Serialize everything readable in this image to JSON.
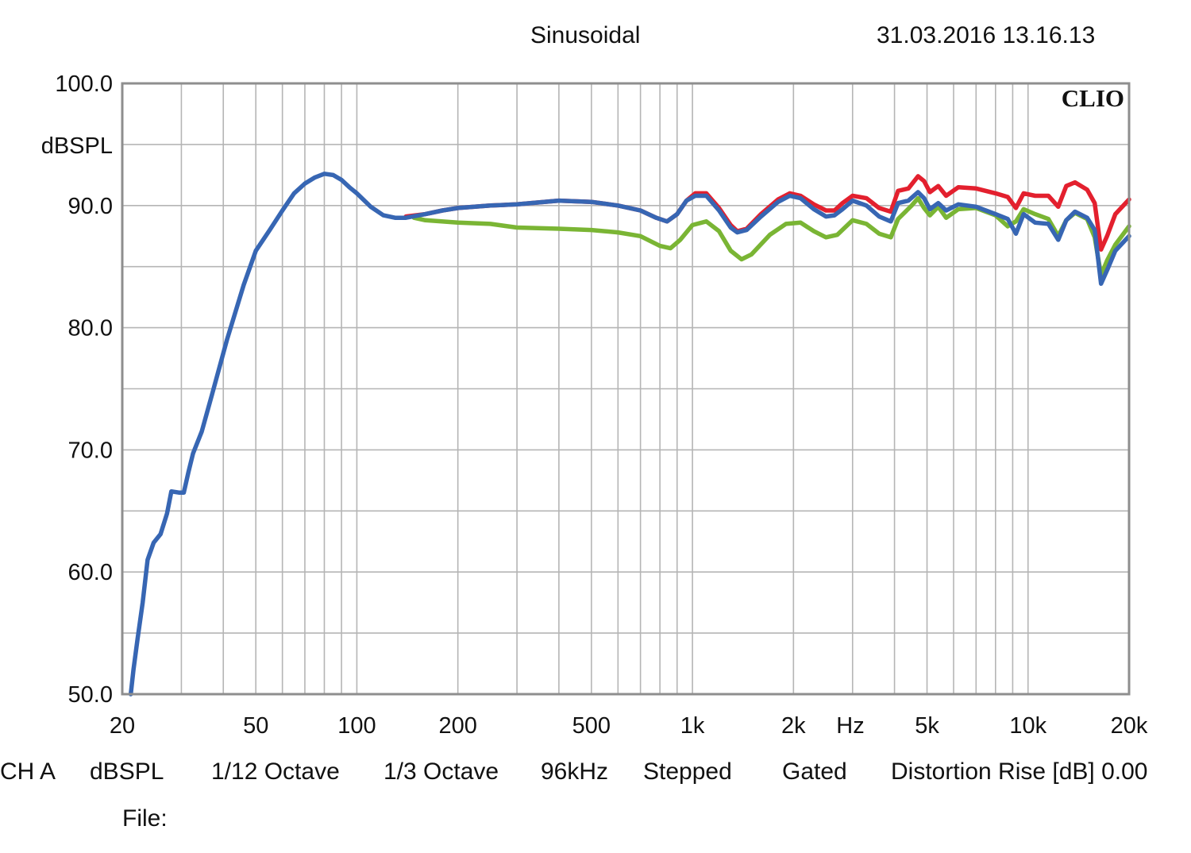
{
  "header": {
    "title": "Sinusoidal",
    "datetime": "31.03.2016 13.16.13"
  },
  "brand": "CLIO",
  "footer": {
    "items": [
      "CH A",
      "dBSPL",
      "1/12 Octave",
      "1/3 Octave",
      "96kHz",
      "Stepped",
      "Gated",
      "Distortion Rise [dB] 0.00"
    ],
    "file_label": "File:"
  },
  "chart_data": {
    "type": "line",
    "xscale": "log",
    "xlim": [
      20,
      20000
    ],
    "ylim": [
      50,
      100
    ],
    "grid": true,
    "ylabel": "dBSPL",
    "xunit_label": "Hz",
    "yticks": [
      "100.0",
      "90.0",
      "80.0",
      "70.0",
      "60.0",
      "50.0"
    ],
    "ytick_values": [
      100,
      90,
      80,
      70,
      60,
      50
    ],
    "xticks": [
      "20",
      "50",
      "100",
      "200",
      "500",
      "1k",
      "2k",
      "5k",
      "10k",
      "20k"
    ],
    "xtick_values": [
      20,
      50,
      100,
      200,
      500,
      1000,
      2000,
      5000,
      10000,
      20000
    ],
    "series": [
      {
        "color": "#7ab534",
        "points": [
          [
            148,
            89.0
          ],
          [
            160,
            88.8
          ],
          [
            200,
            88.6
          ],
          [
            250,
            88.5
          ],
          [
            300,
            88.2
          ],
          [
            400,
            88.1
          ],
          [
            500,
            88.0
          ],
          [
            600,
            87.8
          ],
          [
            700,
            87.5
          ],
          [
            800,
            86.7
          ],
          [
            860,
            86.5
          ],
          [
            920,
            87.2
          ],
          [
            1000,
            88.4
          ],
          [
            1100,
            88.7
          ],
          [
            1200,
            87.9
          ],
          [
            1300,
            86.3
          ],
          [
            1400,
            85.6
          ],
          [
            1500,
            86.0
          ],
          [
            1700,
            87.6
          ],
          [
            1900,
            88.5
          ],
          [
            2100,
            88.6
          ],
          [
            2300,
            87.9
          ],
          [
            2500,
            87.4
          ],
          [
            2700,
            87.6
          ],
          [
            3000,
            88.8
          ],
          [
            3300,
            88.5
          ],
          [
            3600,
            87.7
          ],
          [
            3900,
            87.4
          ],
          [
            4100,
            88.9
          ],
          [
            4500,
            90.0
          ],
          [
            4700,
            90.6
          ],
          [
            4900,
            89.8
          ],
          [
            5100,
            89.2
          ],
          [
            5400,
            89.9
          ],
          [
            5700,
            89.0
          ],
          [
            6200,
            89.7
          ],
          [
            7000,
            89.8
          ],
          [
            8000,
            89.2
          ],
          [
            8700,
            88.3
          ],
          [
            9200,
            88.7
          ],
          [
            9700,
            89.7
          ],
          [
            10500,
            89.3
          ],
          [
            11500,
            88.9
          ],
          [
            12300,
            87.5
          ],
          [
            13000,
            88.8
          ],
          [
            13800,
            89.4
          ],
          [
            15000,
            88.9
          ],
          [
            15800,
            87.4
          ],
          [
            16500,
            84.3
          ],
          [
            17200,
            85.5
          ],
          [
            18200,
            86.8
          ],
          [
            20000,
            88.3
          ]
        ]
      },
      {
        "color": "#e3202e",
        "points": [
          [
            140,
            89.1
          ],
          [
            160,
            89.3
          ],
          [
            180,
            89.6
          ],
          [
            200,
            89.8
          ],
          [
            250,
            90.0
          ],
          [
            300,
            90.1
          ],
          [
            400,
            90.4
          ],
          [
            500,
            90.3
          ],
          [
            600,
            90.0
          ],
          [
            700,
            89.6
          ],
          [
            780,
            89.0
          ],
          [
            840,
            88.7
          ],
          [
            900,
            89.3
          ],
          [
            960,
            90.4
          ],
          [
            1020,
            91.0
          ],
          [
            1100,
            91.0
          ],
          [
            1200,
            89.8
          ],
          [
            1300,
            88.4
          ],
          [
            1360,
            87.9
          ],
          [
            1450,
            88.1
          ],
          [
            1600,
            89.3
          ],
          [
            1800,
            90.5
          ],
          [
            1950,
            91.0
          ],
          [
            2100,
            90.8
          ],
          [
            2300,
            90.1
          ],
          [
            2500,
            89.6
          ],
          [
            2650,
            89.6
          ],
          [
            2800,
            90.2
          ],
          [
            3000,
            90.8
          ],
          [
            3300,
            90.6
          ],
          [
            3600,
            89.8
          ],
          [
            3900,
            89.5
          ],
          [
            4100,
            91.2
          ],
          [
            4400,
            91.4
          ],
          [
            4700,
            92.4
          ],
          [
            4900,
            92.0
          ],
          [
            5100,
            91.1
          ],
          [
            5400,
            91.6
          ],
          [
            5700,
            90.8
          ],
          [
            6200,
            91.5
          ],
          [
            7000,
            91.4
          ],
          [
            8000,
            91.0
          ],
          [
            8700,
            90.7
          ],
          [
            9200,
            89.8
          ],
          [
            9700,
            91.0
          ],
          [
            10500,
            90.8
          ],
          [
            11500,
            90.8
          ],
          [
            12300,
            89.9
          ],
          [
            13000,
            91.6
          ],
          [
            13800,
            91.9
          ],
          [
            15000,
            91.3
          ],
          [
            15800,
            90.2
          ],
          [
            16500,
            86.4
          ],
          [
            17200,
            87.5
          ],
          [
            18200,
            89.3
          ],
          [
            20000,
            90.5
          ]
        ]
      },
      {
        "color": "#3766b3",
        "points": [
          [
            21.2,
            50.0
          ],
          [
            21.6,
            52.0
          ],
          [
            22.2,
            54.5
          ],
          [
            23.0,
            57.5
          ],
          [
            23.8,
            61.0
          ],
          [
            24.8,
            62.4
          ],
          [
            26.0,
            63.1
          ],
          [
            27.2,
            64.8
          ],
          [
            28.0,
            66.6
          ],
          [
            29.5,
            66.5
          ],
          [
            30.5,
            66.5
          ],
          [
            31.5,
            68.2
          ],
          [
            32.5,
            69.7
          ],
          [
            34.5,
            71.5
          ],
          [
            37,
            74.5
          ],
          [
            41,
            79.0
          ],
          [
            46,
            83.5
          ],
          [
            50,
            86.3
          ],
          [
            55,
            88.0
          ],
          [
            60,
            89.6
          ],
          [
            65,
            91.0
          ],
          [
            70,
            91.8
          ],
          [
            75,
            92.3
          ],
          [
            80,
            92.6
          ],
          [
            85,
            92.5
          ],
          [
            90,
            92.1
          ],
          [
            95,
            91.5
          ],
          [
            100,
            91.0
          ],
          [
            110,
            89.9
          ],
          [
            120,
            89.2
          ],
          [
            130,
            89.0
          ],
          [
            140,
            89.0
          ],
          [
            160,
            89.3
          ],
          [
            180,
            89.6
          ],
          [
            200,
            89.8
          ],
          [
            250,
            90.0
          ],
          [
            300,
            90.1
          ],
          [
            400,
            90.4
          ],
          [
            500,
            90.3
          ],
          [
            600,
            90.0
          ],
          [
            700,
            89.6
          ],
          [
            780,
            89.0
          ],
          [
            840,
            88.7
          ],
          [
            900,
            89.3
          ],
          [
            960,
            90.4
          ],
          [
            1020,
            90.8
          ],
          [
            1100,
            90.8
          ],
          [
            1200,
            89.6
          ],
          [
            1300,
            88.2
          ],
          [
            1360,
            87.8
          ],
          [
            1450,
            88.0
          ],
          [
            1600,
            89.1
          ],
          [
            1800,
            90.3
          ],
          [
            1950,
            90.8
          ],
          [
            2100,
            90.6
          ],
          [
            2300,
            89.7
          ],
          [
            2500,
            89.1
          ],
          [
            2650,
            89.2
          ],
          [
            2800,
            89.7
          ],
          [
            3000,
            90.4
          ],
          [
            3300,
            90.0
          ],
          [
            3600,
            89.1
          ],
          [
            3900,
            88.7
          ],
          [
            4100,
            90.2
          ],
          [
            4400,
            90.4
          ],
          [
            4700,
            91.1
          ],
          [
            4900,
            90.6
          ],
          [
            5100,
            89.7
          ],
          [
            5400,
            90.2
          ],
          [
            5700,
            89.6
          ],
          [
            6200,
            90.1
          ],
          [
            7000,
            89.9
          ],
          [
            8000,
            89.3
          ],
          [
            8700,
            88.9
          ],
          [
            9200,
            87.7
          ],
          [
            9700,
            89.3
          ],
          [
            10500,
            88.6
          ],
          [
            11500,
            88.5
          ],
          [
            12300,
            87.2
          ],
          [
            13000,
            88.8
          ],
          [
            13800,
            89.5
          ],
          [
            15000,
            89.0
          ],
          [
            15800,
            88.0
          ],
          [
            16500,
            83.6
          ],
          [
            17200,
            84.7
          ],
          [
            18200,
            86.3
          ],
          [
            20000,
            87.5
          ]
        ]
      }
    ]
  }
}
